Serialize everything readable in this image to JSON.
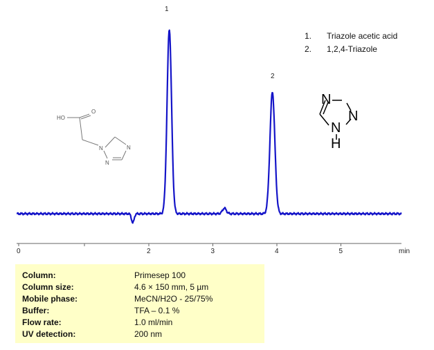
{
  "chart_data": {
    "type": "line",
    "title": "",
    "xlabel": "min",
    "ylabel": "",
    "xlim": [
      0,
      6
    ],
    "x_ticks": [
      0,
      2,
      3,
      4,
      5
    ],
    "x_tick_labels": [
      "0",
      "2",
      "3",
      "4",
      "5"
    ],
    "unit_label": "min",
    "grid": false,
    "baseline": 0,
    "peaks": [
      {
        "label": "1",
        "rt": 2.32,
        "height": 100,
        "width": 0.035
      },
      {
        "label": "2",
        "rt": 3.93,
        "height": 66,
        "width": 0.038
      }
    ],
    "minor_features": [
      {
        "rt": 1.75,
        "height": -5,
        "width": 0.02
      },
      {
        "rt": 3.18,
        "height": 3,
        "width": 0.03
      }
    ],
    "legend": [
      "1.  Triazole acetic acid",
      "2.  1,2,4-Triazole"
    ],
    "line_color": "#1414c8"
  },
  "legend": {
    "items": [
      {
        "num": "1.",
        "name": "Triazole acetic acid"
      },
      {
        "num": "2.",
        "name": "1,2,4-Triazole"
      }
    ]
  },
  "structures": {
    "acid": {
      "ho": "HO",
      "o": "O",
      "n1": "N",
      "n2": "N",
      "n3": "N"
    },
    "triazole": {
      "n_top": "N",
      "n_right": "N",
      "n_mid": "N",
      "h": "H"
    }
  },
  "conditions": [
    {
      "label": "Column:",
      "value": "Primesep 100"
    },
    {
      "label": "Column size:",
      "value": "4.6 × 150 mm, 5 µm"
    },
    {
      "label": "Mobile phase:",
      "value": "MeCN/H2O - 25/75%"
    },
    {
      "label": "Buffer:",
      "value": "TFA – 0.1 %"
    },
    {
      "label": "Flow rate:",
      "value": "1.0 ml/min"
    },
    {
      "label": "UV detection:",
      "value": "200 nm"
    }
  ],
  "colors": {
    "trace": "#1414c8",
    "panel": "#ffffc8"
  }
}
